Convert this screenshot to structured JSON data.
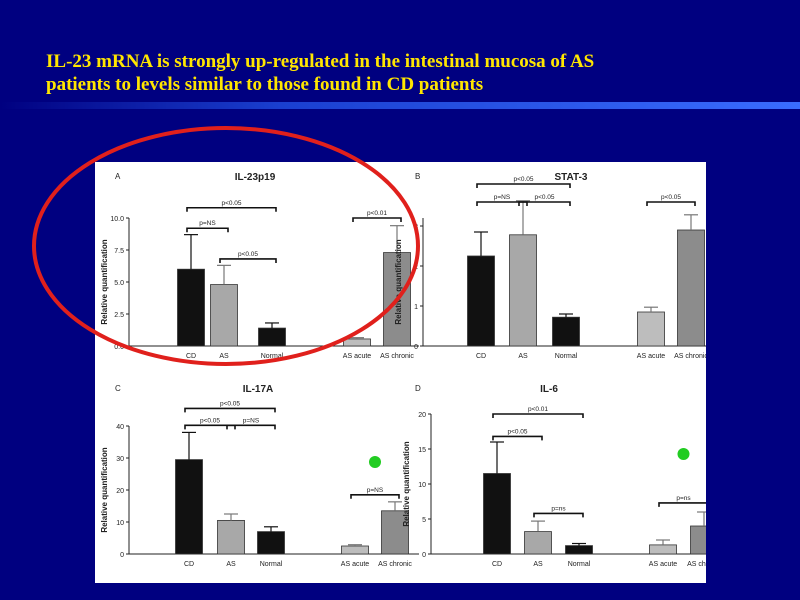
{
  "slide": {
    "title_line1": "IL-23 mRNA is strongly up-regulated in the intestinal mucosa of AS",
    "title_line2": "patients to levels similar to those found in CD patients",
    "colors": {
      "background": "#000080",
      "title": "#FFE600",
      "highlight_ring": "#E0201C",
      "marker_dot": "#22CC22"
    }
  },
  "chart_data": [
    {
      "type": "bar",
      "panel_letter": "A",
      "title": "IL-23p19",
      "ylabel": "Relative quantification",
      "ylim": [
        0,
        10
      ],
      "yticks": [
        "0.0",
        "2.5",
        "5.0",
        "7.5",
        "10.0"
      ],
      "ytick_values": [
        0,
        2.5,
        5,
        7.5,
        10
      ],
      "categories": [
        "CD",
        "AS",
        "Normal",
        "AS acute",
        "AS chronic"
      ],
      "values": [
        6.0,
        4.8,
        1.4,
        0.55,
        7.3
      ],
      "errors": [
        2.7,
        1.5,
        0.4,
        0.1,
        2.1
      ],
      "bar_colors": [
        "#111111",
        "#A8A8A8",
        "#111111",
        "#BDBDBD",
        "#8C8C8C"
      ],
      "annotations": [
        {
          "text": "p<0.05",
          "from": 0,
          "to": 2,
          "y": 10.8
        },
        {
          "text": "p=NS",
          "from": 0,
          "to": 1,
          "y": 9.2
        },
        {
          "text": "p<0.05",
          "from": 1,
          "to": 2,
          "y": 6.8
        },
        {
          "text": "p<0.01",
          "from": 3,
          "to": 4,
          "y": 10.0
        }
      ],
      "highlighted": true,
      "marker": false
    },
    {
      "type": "bar",
      "panel_letter": "B",
      "title": "STAT-3",
      "ylabel": "Relative quantification",
      "ylim": [
        0,
        3.2
      ],
      "yticks": [
        "0",
        "1",
        "2",
        "3"
      ],
      "ytick_values": [
        0,
        1,
        2,
        3
      ],
      "categories": [
        "CD",
        "AS",
        "Normal",
        "AS acute",
        "AS chronic"
      ],
      "values": [
        2.25,
        2.78,
        0.72,
        0.85,
        2.9
      ],
      "errors": [
        0.6,
        0.85,
        0.08,
        0.12,
        0.38
      ],
      "bar_colors": [
        "#111111",
        "#A8A8A8",
        "#111111",
        "#BDBDBD",
        "#8C8C8C"
      ],
      "annotations": [
        {
          "text": "p<0.05",
          "from": 0,
          "to": 2,
          "y": 4.05
        },
        {
          "text": "p=NS",
          "from": 0,
          "to": 1,
          "y": 3.6
        },
        {
          "text": "p<0.05",
          "from": 1,
          "to": 2,
          "y": 3.6
        },
        {
          "text": "p<0.05",
          "from": 3,
          "to": 4,
          "y": 3.6
        }
      ],
      "highlighted": false,
      "marker": false
    },
    {
      "type": "bar",
      "panel_letter": "C",
      "title": "IL-17A",
      "ylabel": "Relative quantification",
      "ylim": [
        0,
        40
      ],
      "yticks": [
        "0",
        "10",
        "20",
        "30",
        "40"
      ],
      "ytick_values": [
        0,
        10,
        20,
        30,
        40
      ],
      "categories": [
        "CD",
        "AS",
        "Normal",
        "AS acute",
        "AS chronic"
      ],
      "values": [
        29.5,
        10.5,
        7.0,
        2.5,
        13.5
      ],
      "errors": [
        8.5,
        2.0,
        1.5,
        0.4,
        2.8
      ],
      "bar_colors": [
        "#111111",
        "#A8A8A8",
        "#111111",
        "#BDBDBD",
        "#8C8C8C"
      ],
      "annotations": [
        {
          "text": "p<0.05",
          "from": 0,
          "to": 2,
          "y": 45.5
        },
        {
          "text": "p<0.05",
          "from": 0,
          "to": 1,
          "y": 40.2
        },
        {
          "text": "p=NS",
          "from": 1,
          "to": 2,
          "y": 40.2
        },
        {
          "text": "p=NS",
          "from": 3,
          "to": 4,
          "y": 18.5
        }
      ],
      "highlighted": false,
      "marker": true
    },
    {
      "type": "bar",
      "panel_letter": "D",
      "title": "IL-6",
      "ylabel": "Relative quantification",
      "ylim": [
        0,
        20
      ],
      "yticks": [
        "0",
        "5",
        "10",
        "15",
        "20"
      ],
      "ytick_values": [
        0,
        5,
        10,
        15,
        20
      ],
      "categories": [
        "CD",
        "AS",
        "Normal",
        "AS acute",
        "AS chronic"
      ],
      "values": [
        11.5,
        3.2,
        1.2,
        1.3,
        4.0
      ],
      "errors": [
        4.5,
        1.5,
        0.3,
        0.7,
        2.0
      ],
      "bar_colors": [
        "#111111",
        "#A8A8A8",
        "#111111",
        "#BDBDBD",
        "#8C8C8C"
      ],
      "annotations": [
        {
          "text": "p<0.01",
          "from": 0,
          "to": 2,
          "y": 20.0
        },
        {
          "text": "p<0.05",
          "from": 0,
          "to": 1,
          "y": 16.8
        },
        {
          "text": "p=ns",
          "from": 1,
          "to": 2,
          "y": 5.8
        },
        {
          "text": "p=ns",
          "from": 3,
          "to": 4,
          "y": 7.3
        }
      ],
      "highlighted": false,
      "marker": true
    }
  ]
}
